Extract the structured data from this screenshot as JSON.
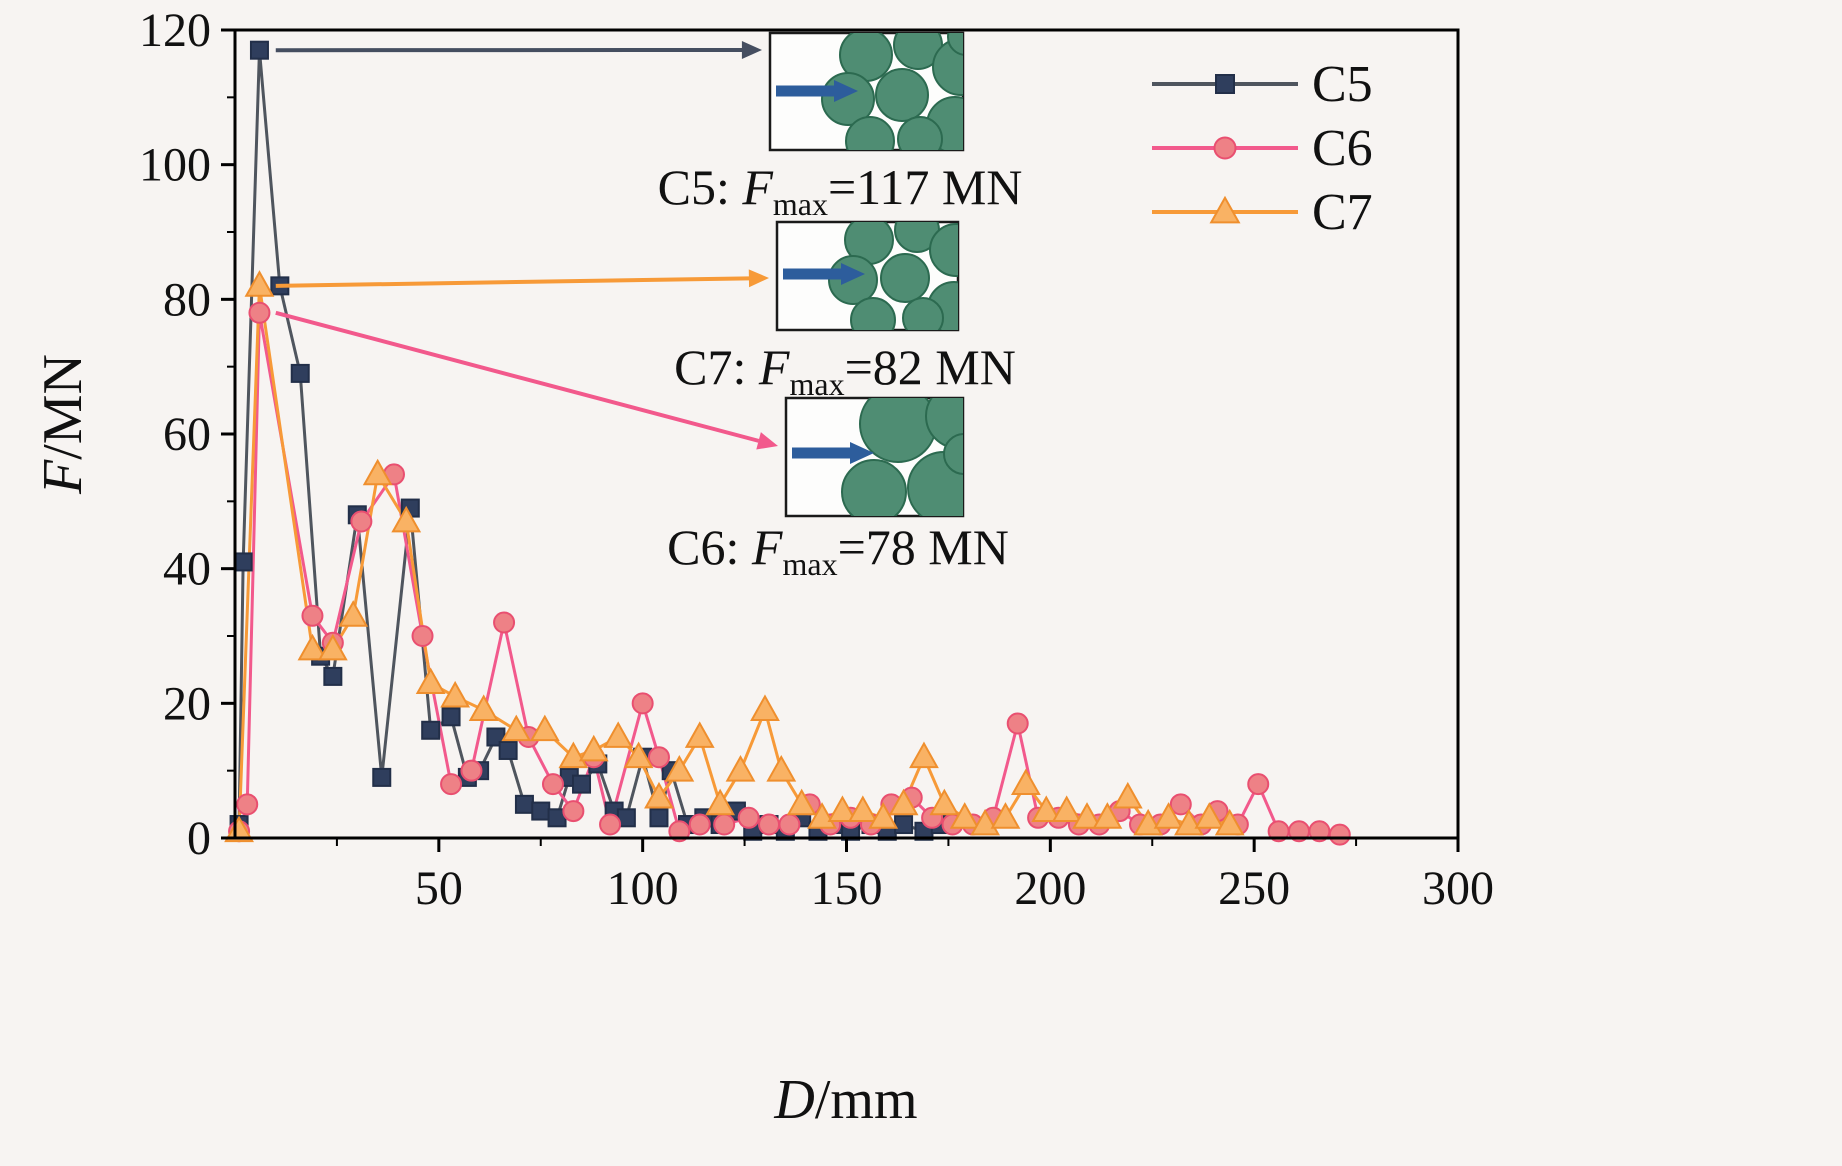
{
  "background": "#f7f4f2",
  "chart_data": {
    "type": "line",
    "title": "",
    "xlabel_italic": "D",
    "xlabel_rest": "/mm",
    "ylabel_italic": "F",
    "ylabel_rest": "/MN",
    "xlim": [
      0,
      300
    ],
    "ylim": [
      0,
      120
    ],
    "xticks": [
      50,
      100,
      150,
      200,
      250,
      300
    ],
    "yticks": [
      0,
      20,
      40,
      60,
      80,
      100,
      120
    ],
    "grid": false,
    "legend_position": "top-right",
    "series": [
      {
        "name": "C5",
        "marker": "square",
        "line_color": "#4f555e",
        "marker_fill": "#2f3e5d",
        "marker_stroke": "#222f49",
        "points": [
          [
            1,
            2
          ],
          [
            2,
            41
          ],
          [
            6,
            117
          ],
          [
            11,
            82
          ],
          [
            16,
            69
          ],
          [
            21,
            27
          ],
          [
            24,
            24
          ],
          [
            30,
            48
          ],
          [
            36,
            9
          ],
          [
            43,
            49
          ],
          [
            48,
            16
          ],
          [
            53,
            18
          ],
          [
            57,
            9
          ],
          [
            60,
            10
          ],
          [
            64,
            15
          ],
          [
            67,
            13
          ],
          [
            71,
            5
          ],
          [
            75,
            4
          ],
          [
            79,
            3
          ],
          [
            82,
            9
          ],
          [
            85,
            8
          ],
          [
            89,
            11
          ],
          [
            93,
            4
          ],
          [
            96,
            3
          ],
          [
            100,
            12
          ],
          [
            104,
            3
          ],
          [
            107,
            10
          ],
          [
            111,
            2
          ],
          [
            115,
            3
          ],
          [
            119,
            2
          ],
          [
            123,
            4
          ],
          [
            127,
            1
          ],
          [
            131,
            2
          ],
          [
            135,
            1
          ],
          [
            139,
            3
          ],
          [
            143,
            1
          ],
          [
            147,
            2
          ],
          [
            151,
            1
          ],
          [
            156,
            2
          ],
          [
            160,
            1
          ],
          [
            164,
            2
          ],
          [
            169,
            1
          ],
          [
            173,
            2
          ]
        ]
      },
      {
        "name": "C6",
        "marker": "circle",
        "line_color": "#f2598c",
        "marker_fill": "#ee8186",
        "marker_stroke": "#e94f70",
        "points": [
          [
            1,
            1
          ],
          [
            3,
            5
          ],
          [
            6,
            78
          ],
          [
            19,
            33
          ],
          [
            24,
            29
          ],
          [
            31,
            47
          ],
          [
            39,
            54
          ],
          [
            46,
            30
          ],
          [
            53,
            8
          ],
          [
            58,
            10
          ],
          [
            66,
            32
          ],
          [
            72,
            15
          ],
          [
            78,
            8
          ],
          [
            83,
            4
          ],
          [
            88,
            12
          ],
          [
            92,
            2
          ],
          [
            100,
            20
          ],
          [
            104,
            12
          ],
          [
            109,
            1
          ],
          [
            114,
            2
          ],
          [
            120,
            2
          ],
          [
            126,
            3
          ],
          [
            131,
            2
          ],
          [
            136,
            2
          ],
          [
            141,
            5
          ],
          [
            146,
            2
          ],
          [
            151,
            3
          ],
          [
            156,
            2
          ],
          [
            161,
            5
          ],
          [
            166,
            6
          ],
          [
            171,
            3
          ],
          [
            176,
            2
          ],
          [
            181,
            2
          ],
          [
            186,
            3
          ],
          [
            192,
            17
          ],
          [
            197,
            3
          ],
          [
            202,
            3
          ],
          [
            207,
            2
          ],
          [
            212,
            2
          ],
          [
            217,
            4
          ],
          [
            222,
            2
          ],
          [
            227,
            2
          ],
          [
            232,
            5
          ],
          [
            237,
            2
          ],
          [
            241,
            4
          ],
          [
            246,
            2
          ],
          [
            251,
            8
          ],
          [
            256,
            1
          ],
          [
            261,
            1
          ],
          [
            266,
            1
          ],
          [
            271,
            0.5
          ]
        ]
      },
      {
        "name": "C7",
        "marker": "triangle",
        "line_color": "#f79a38",
        "marker_fill": "#f9b264",
        "marker_stroke": "#ef8f2e",
        "points": [
          [
            1,
            1
          ],
          [
            6,
            82
          ],
          [
            19,
            28
          ],
          [
            24,
            28
          ],
          [
            29,
            33
          ],
          [
            35,
            54
          ],
          [
            42,
            47
          ],
          [
            48,
            23
          ],
          [
            54,
            21
          ],
          [
            61,
            19
          ],
          [
            69,
            16
          ],
          [
            76,
            16
          ],
          [
            83,
            12
          ],
          [
            88,
            13
          ],
          [
            94,
            15
          ],
          [
            99,
            12
          ],
          [
            104,
            6
          ],
          [
            109,
            10
          ],
          [
            114,
            15
          ],
          [
            119,
            5
          ],
          [
            124,
            10
          ],
          [
            130,
            19
          ],
          [
            134,
            10
          ],
          [
            139,
            5
          ],
          [
            144,
            3
          ],
          [
            149,
            4
          ],
          [
            154,
            4
          ],
          [
            159,
            3
          ],
          [
            164,
            5
          ],
          [
            169,
            12
          ],
          [
            174,
            5
          ],
          [
            179,
            3
          ],
          [
            184,
            2
          ],
          [
            189,
            3
          ],
          [
            194,
            8
          ],
          [
            199,
            4
          ],
          [
            204,
            4
          ],
          [
            209,
            3
          ],
          [
            214,
            3
          ],
          [
            219,
            6
          ],
          [
            224,
            2
          ],
          [
            229,
            3
          ],
          [
            234,
            2
          ],
          [
            239,
            3
          ],
          [
            244,
            2
          ]
        ]
      }
    ],
    "annotation_arrows": [
      {
        "series": "C5",
        "from_d": 10,
        "from_f": 117,
        "color": "#454e60"
      },
      {
        "series": "C7",
        "from_d": 10,
        "from_f": 82,
        "color": "#f79a38"
      },
      {
        "series": "C6",
        "from_d": 10,
        "from_f": 78,
        "color": "#f2598c"
      }
    ]
  },
  "annotations": [
    {
      "prefix": "C5: ",
      "fsym": "F",
      "sub": "max",
      "rest": "=117 MN"
    },
    {
      "prefix": "C7: ",
      "fsym": "F",
      "sub": "max",
      "rest": "=82 MN"
    },
    {
      "prefix": "C6: ",
      "fsym": "F",
      "sub": "max",
      "rest": "=78 MN"
    }
  ],
  "inset_colors": {
    "particle_fill": "#4f8d73",
    "particle_stroke": "#2c6a50",
    "arrow_blue": "#2d5d9c",
    "box_bg": "#fdfdfc",
    "box_border": "#1a1a1a"
  }
}
